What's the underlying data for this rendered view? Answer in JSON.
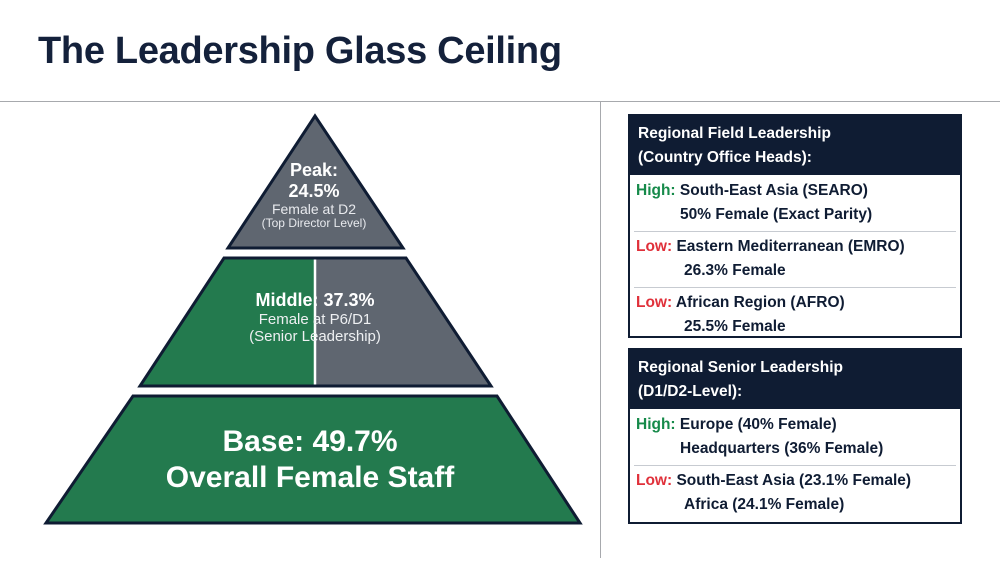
{
  "title": "The Leadership Glass Ceiling",
  "colors": {
    "navy": "#0f1c33",
    "green": "#237a4e",
    "slate": "#5f6670",
    "high": "#168a4a",
    "low": "#e0303a"
  },
  "pyramid": {
    "peak": {
      "title": "Peak:",
      "value": "24.5%",
      "desc": "Female at D2",
      "note": "(Top Director Level)"
    },
    "middle": {
      "title": "Middle: 37.3%",
      "desc": "Female at P6/D1",
      "note": "(Senior Leadership)",
      "green_fraction": 0.373
    },
    "base": {
      "line1": "Base: 49.7%",
      "line2": "Overall Female Staff"
    }
  },
  "field_panel": {
    "header_line1": "Regional Field Leadership",
    "header_line2": "(Country Office Heads):",
    "rows": [
      {
        "tag": "High:",
        "line1": "South-East Asia (SEARO)",
        "line2": "50% Female (Exact Parity)"
      },
      {
        "tag": "Low:",
        "line1": "Eastern Mediterranean (EMRO)",
        "line2": "26.3% Female"
      },
      {
        "tag": "Low:",
        "line1": "African Region (AFRO)",
        "line2": "25.5% Female"
      }
    ]
  },
  "senior_panel": {
    "header_line1": "Regional Senior Leadership",
    "header_line2": "(D1/D2-Level):",
    "rows": [
      {
        "tag": "High:",
        "line1": "Europe (40% Female)",
        "line2": "Headquarters (36% Female)"
      },
      {
        "tag": "Low:",
        "line1": "South-East Asia (23.1% Female)",
        "line2": "Africa (24.1% Female)"
      }
    ]
  }
}
